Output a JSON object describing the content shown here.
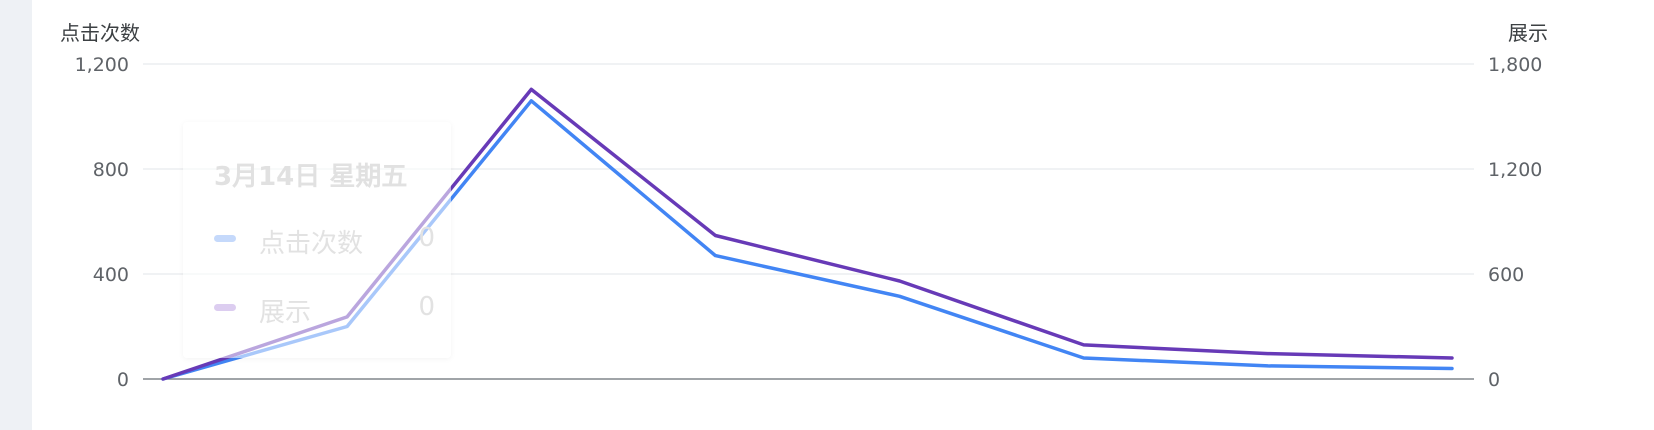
{
  "chart_data": {
    "type": "line",
    "y_left_title": "点击次数",
    "y_right_title": "展示",
    "y_left_ticks": [
      "0",
      "400",
      "800",
      "1,200"
    ],
    "y_right_ticks": [
      "0",
      "600",
      "1,200",
      "1,800"
    ],
    "y_left_range": [
      0,
      1200
    ],
    "y_right_range": [
      0,
      1800
    ],
    "grid": true,
    "series": [
      {
        "name": "点击次数",
        "axis": "left",
        "color": "#4285f4",
        "values": [
          0,
          200,
          1060,
          470,
          315,
          80,
          50,
          40
        ]
      },
      {
        "name": "展示",
        "axis": "right",
        "color": "#673ab7",
        "values": [
          0,
          355,
          1655,
          820,
          560,
          195,
          145,
          120
        ]
      }
    ]
  },
  "tooltip": {
    "title": "3月14日 星期五",
    "rows": [
      {
        "label": "点击次数",
        "value": "0",
        "color": "#4285f4"
      },
      {
        "label": "展示",
        "value": "0",
        "color": "#673ab7"
      }
    ]
  }
}
